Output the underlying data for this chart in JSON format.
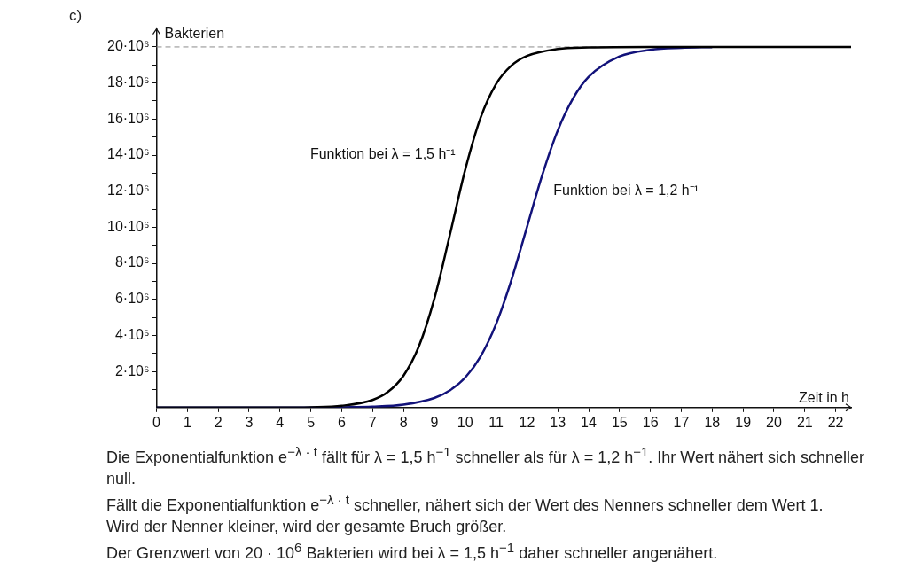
{
  "chart_data": {
    "type": "line",
    "title": "c)",
    "xlabel": "Zeit in h",
    "ylabel": "Bakterien",
    "xlim": [
      0,
      22.5
    ],
    "xticks": [
      0,
      1,
      2,
      3,
      4,
      5,
      6,
      7,
      8,
      9,
      10,
      11,
      12,
      13,
      14,
      15,
      16,
      17,
      18,
      19,
      20,
      21,
      22
    ],
    "ylim": [
      0,
      21000000
    ],
    "yticks": [
      {
        "value": 1000000,
        "label": null
      },
      {
        "value": 2000000,
        "label": "2·10⁶"
      },
      {
        "value": 3000000,
        "label": null
      },
      {
        "value": 4000000,
        "label": "4·10⁶"
      },
      {
        "value": 5000000,
        "label": null
      },
      {
        "value": 6000000,
        "label": "6·10⁶"
      },
      {
        "value": 7000000,
        "label": null
      },
      {
        "value": 8000000,
        "label": "8·10⁶"
      },
      {
        "value": 9000000,
        "label": null
      },
      {
        "value": 10000000,
        "label": "10·10⁶"
      },
      {
        "value": 11000000,
        "label": null
      },
      {
        "value": 12000000,
        "label": "12·10⁶"
      },
      {
        "value": 13000000,
        "label": null
      },
      {
        "value": 14000000,
        "label": "14·10⁶"
      },
      {
        "value": 15000000,
        "label": null
      },
      {
        "value": 16000000,
        "label": "16·10⁶"
      },
      {
        "value": 17000000,
        "label": null
      },
      {
        "value": 18000000,
        "label": "18·10⁶"
      },
      {
        "value": 19000000,
        "label": null
      },
      {
        "value": 20000000,
        "label": "20·10⁶"
      }
    ],
    "grid": false,
    "legend": false,
    "marker": "none",
    "line_style": "solid",
    "series": [
      {
        "name": "Funktion bei λ = 1,5 h⁻¹",
        "color": "#000000",
        "x": [
          0,
          4,
          5,
          6,
          7,
          7.5,
          8,
          8.5,
          9,
          9.5,
          10,
          10.5,
          11,
          11.5,
          12,
          13,
          14,
          16,
          22.5
        ],
        "values": [
          0,
          0,
          20000,
          100000,
          420000,
          870000,
          1760000,
          3390000,
          6030000,
          9550000,
          13180000,
          16080000,
          17940000,
          18970000,
          19500000,
          19890000,
          19970000,
          20000000,
          20000000
        ]
      },
      {
        "name": "Funktion bei λ = 1,2 h⁻¹",
        "color": "#12127a",
        "x": [
          0,
          5,
          6,
          7,
          8,
          9,
          9.5,
          10,
          10.5,
          11,
          11.5,
          12,
          12.5,
          13,
          13.5,
          14,
          15,
          16,
          17,
          18
        ],
        "values": [
          0,
          0,
          20000,
          50000,
          160000,
          530000,
          950000,
          1660000,
          2840000,
          4630000,
          7090000,
          10000000,
          12910000,
          15370000,
          17160000,
          18340000,
          19470000,
          19840000,
          19950000,
          19990000
        ]
      }
    ],
    "ref_lines": [
      {
        "axis": "y",
        "value": 20000000,
        "color": "#8c8c8c",
        "line_style": "dashed"
      }
    ],
    "annotations": [
      "Die Exponentialfunktion e$^{−λ · t}$ fällt für λ = 1,5 h$^{−1}$ schneller als für λ = 1,2 h$^{−1}$. Ihr Wert nähert sich schneller null.",
      "Fällt die Exponentialfunktion e$^{−λ · t}$ schneller, nähert sich der Wert des Nenners schneller dem Wert 1.",
      "Wird der Nenner kleiner, wird der gesamte Bruch größer.",
      "Der Grenzwert von 20 · 10$^{6}$ Bakterien wird bei λ = 1,5 h$^{−1}$ daher schneller angenähert."
    ]
  }
}
